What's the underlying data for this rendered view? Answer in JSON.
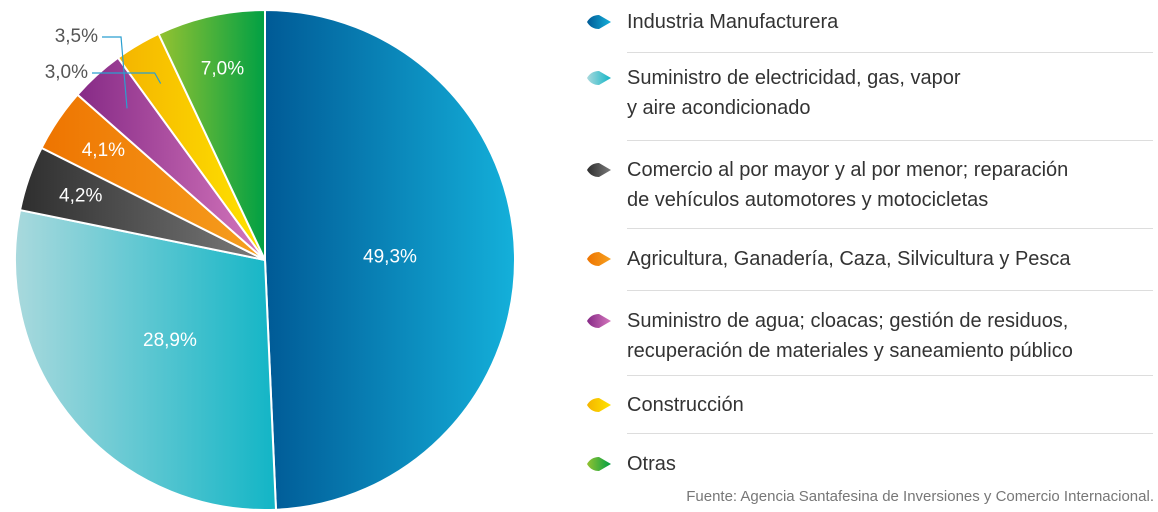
{
  "chart_data": {
    "type": "pie",
    "categories": [
      "Industria Manufacturera",
      "Suministro de electricidad, gas, vapor\ny aire acondicionado",
      "Comercio al por mayor y al por menor; reparación\nde vehículos automotores y motocicletas",
      "Agricultura, Ganadería, Caza, Silvicultura y Pesca",
      "Suministro de agua; cloacas; gestión de residuos,\nrecuperación de materiales y saneamiento público",
      "Construcción",
      "Otras"
    ],
    "values": [
      49.3,
      28.9,
      4.2,
      4.1,
      3.5,
      3.0,
      7.0
    ],
    "value_labels": [
      "49,3%",
      "28,9%",
      "4,2%",
      "4,1%",
      "3,5%",
      "3,0%",
      "7,0%"
    ],
    "colors": [
      [
        "#005a96",
        "#14b0da"
      ],
      [
        "#a9d9dd",
        "#12b5c6"
      ],
      [
        "#2e2e2e",
        "#7a7a7a"
      ],
      [
        "#ee7400",
        "#f6a020"
      ],
      [
        "#862a86",
        "#d577bd"
      ],
      [
        "#f4b400",
        "#ffe400"
      ],
      [
        "#94c231",
        "#00a044"
      ]
    ],
    "source": "Fuente: Agencia Santafesina de Inversiones y Comercio Internacional."
  }
}
